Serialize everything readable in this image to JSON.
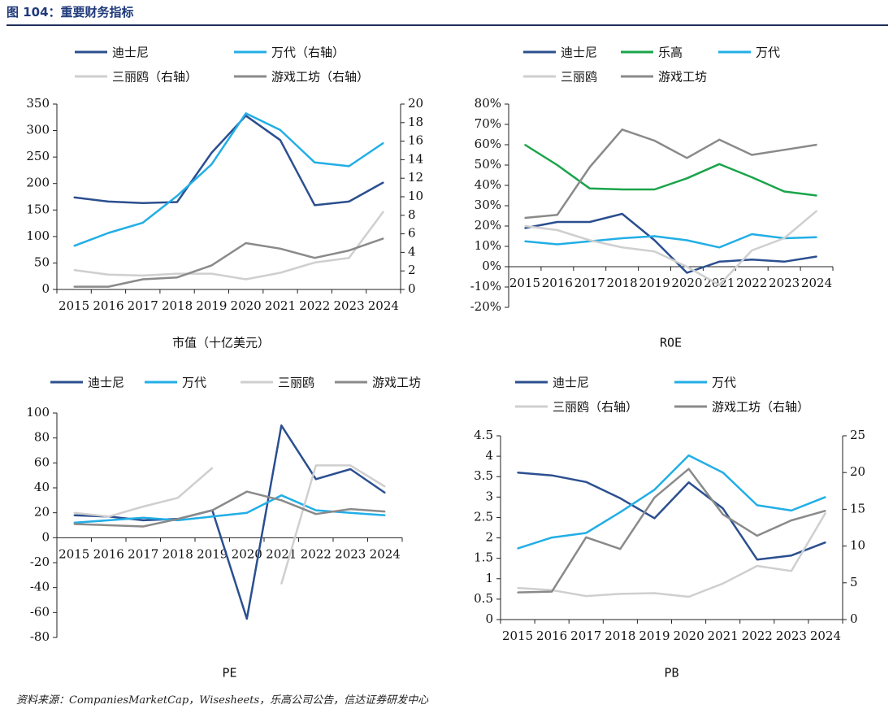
{
  "figure": {
    "title": "图 104：重要财务指标",
    "source": "资料来源：CompaniesMarketCap，Wisesheets，乐高公司公告，信达证券研发中心"
  },
  "colors": {
    "disney": "#2b4f8f",
    "lego": "#1aa44a",
    "activision": "#22aee6",
    "nintendo": "#cfcfcf",
    "ubisoft": "#8a8a8a"
  },
  "chart_data": [
    {
      "id": "market-cap",
      "type": "line",
      "title": "市值（十亿美元）",
      "x": [
        "2015",
        "2016",
        "2017",
        "2018",
        "2019",
        "2020",
        "2021",
        "2022",
        "2023",
        "2024"
      ],
      "ylim": [
        0,
        350
      ],
      "yticks": [
        0,
        50,
        100,
        150,
        200,
        250,
        300,
        350
      ],
      "y2lim": [
        0,
        20
      ],
      "y2ticks": [
        0,
        2,
        4,
        6,
        8,
        10,
        12,
        14,
        16,
        18,
        20
      ],
      "series": [
        {
          "name": "迪士尼",
          "legend": "迪士尼",
          "color": "#2b4f8f",
          "axis": "left",
          "values": [
            174,
            166,
            163,
            165,
            258,
            328,
            282,
            159,
            166,
            202
          ]
        },
        {
          "name": "万代",
          "legend": "万代（右轴）",
          "color": "#22aee6",
          "axis": "right",
          "values": [
            4.7,
            6.1,
            7.2,
            10.1,
            13.5,
            19.0,
            17.2,
            13.7,
            13.3,
            15.8
          ]
        },
        {
          "name": "三丽鸥",
          "legend": "三丽鸥（右轴）",
          "color": "#cfcfcf",
          "axis": "right",
          "values": [
            2.1,
            1.6,
            1.5,
            1.7,
            1.7,
            1.1,
            1.8,
            2.9,
            3.4,
            8.4
          ]
        },
        {
          "name": "游戏工坊",
          "legend": "游戏工坊（右轴）",
          "color": "#8a8a8a",
          "axis": "right",
          "values": [
            0.3,
            0.3,
            1.1,
            1.3,
            2.6,
            5.0,
            4.4,
            3.4,
            4.2,
            5.5
          ]
        }
      ]
    },
    {
      "id": "roe",
      "type": "line",
      "title": "ROE",
      "x": [
        "2015",
        "2016",
        "2017",
        "2018",
        "2019",
        "2020",
        "2021",
        "2022",
        "2023",
        "2024"
      ],
      "ylim": [
        -20,
        80
      ],
      "yticks": [
        -20,
        -10,
        0,
        10,
        20,
        30,
        40,
        50,
        60,
        70,
        80
      ],
      "ytick_labels": [
        "-20%",
        "-10%",
        "0%",
        "10%",
        "20%",
        "30%",
        "40%",
        "50%",
        "60%",
        "70%",
        "80%"
      ],
      "series": [
        {
          "name": "迪士尼",
          "legend": "迪士尼",
          "color": "#2b4f8f",
          "values": [
            19,
            22,
            22,
            26,
            13,
            -3,
            2.5,
            3.5,
            2.5,
            5
          ]
        },
        {
          "name": "乐高",
          "legend": "乐高",
          "color": "#1aa44a",
          "values": [
            60,
            50,
            38.5,
            38,
            38,
            43.5,
            50.5,
            44,
            37,
            35
          ]
        },
        {
          "name": "万代",
          "legend": "万代",
          "color": "#22aee6",
          "values": [
            12.5,
            11,
            12.5,
            14,
            15,
            13,
            9.5,
            16,
            14,
            14.5
          ]
        },
        {
          "name": "三丽鸥",
          "legend": "三丽鸥",
          "color": "#cfcfcf",
          "values": [
            20,
            18,
            13,
            9.5,
            7.5,
            0,
            -9,
            8,
            14,
            27.5
          ]
        },
        {
          "name": "游戏工坊",
          "legend": "游戏工坊",
          "color": "#8a8a8a",
          "values": [
            24,
            25.5,
            49,
            67.5,
            62,
            53.5,
            62.5,
            55,
            57.5,
            60
          ]
        }
      ]
    },
    {
      "id": "pe",
      "type": "line",
      "title": "PE",
      "x": [
        "2015",
        "2016",
        "2017",
        "2018",
        "2019",
        "2020",
        "2021",
        "2022",
        "2023",
        "2024"
      ],
      "ylim": [
        -80,
        100
      ],
      "yticks": [
        -80,
        -60,
        -40,
        -20,
        0,
        20,
        40,
        60,
        80,
        100
      ],
      "series": [
        {
          "name": "迪士尼",
          "legend": "迪士尼",
          "color": "#2b4f8f",
          "values": [
            18,
            17,
            14,
            15,
            22,
            -65,
            90,
            47,
            55,
            36
          ]
        },
        {
          "name": "万代",
          "legend": "万代",
          "color": "#22aee6",
          "values": [
            12,
            14,
            16,
            14,
            17,
            20,
            34,
            22,
            20,
            18
          ]
        },
        {
          "name": "三丽鸥",
          "legend": "三丽鸥",
          "color": "#cfcfcf",
          "values": [
            20,
            17,
            25,
            32,
            56,
            null,
            -37,
            58,
            58,
            41
          ]
        },
        {
          "name": "游戏工坊",
          "legend": "游戏工坊",
          "color": "#8a8a8a",
          "values": [
            11,
            10,
            9,
            15,
            22,
            37,
            30,
            19,
            23,
            21
          ]
        }
      ]
    },
    {
      "id": "pb",
      "type": "line",
      "title": "PB",
      "x": [
        "2015",
        "2016",
        "2017",
        "2018",
        "2019",
        "2020",
        "2021",
        "2022",
        "2023",
        "2024"
      ],
      "ylim": [
        0,
        4.5
      ],
      "yticks": [
        0,
        0.5,
        1,
        1.5,
        2,
        2.5,
        3,
        3.5,
        4,
        4.5
      ],
      "ytick_labels": [
        "0",
        "0.5",
        "1",
        "1.5",
        "2",
        "2.5",
        "3",
        "3.5",
        "4",
        "4.5"
      ],
      "y2lim": [
        0,
        25
      ],
      "y2ticks": [
        0,
        5,
        10,
        15,
        20,
        25
      ],
      "series": [
        {
          "name": "迪士尼",
          "legend": "迪士尼",
          "color": "#2b4f8f",
          "axis": "left",
          "values": [
            3.6,
            3.53,
            3.37,
            2.97,
            2.48,
            3.36,
            2.72,
            1.47,
            1.57,
            1.89
          ]
        },
        {
          "name": "万代",
          "legend": "万代",
          "color": "#22aee6",
          "axis": "left",
          "values": [
            1.74,
            2.01,
            2.12,
            2.63,
            3.18,
            4.02,
            3.6,
            2.8,
            2.67,
            3.0
          ]
        },
        {
          "name": "三丽鸥",
          "legend": "三丽鸥（右轴）",
          "color": "#cfcfcf",
          "axis": "right",
          "values": [
            4.3,
            4.0,
            3.2,
            3.5,
            3.6,
            3.1,
            4.9,
            7.3,
            6.6,
            14.5
          ]
        },
        {
          "name": "游戏工坊",
          "legend": "游戏工坊（右轴）",
          "color": "#8a8a8a",
          "axis": "right",
          "values": [
            3.7,
            3.8,
            11.2,
            9.6,
            16.6,
            20.5,
            14.3,
            11.4,
            13.5,
            14.8
          ]
        }
      ]
    }
  ]
}
